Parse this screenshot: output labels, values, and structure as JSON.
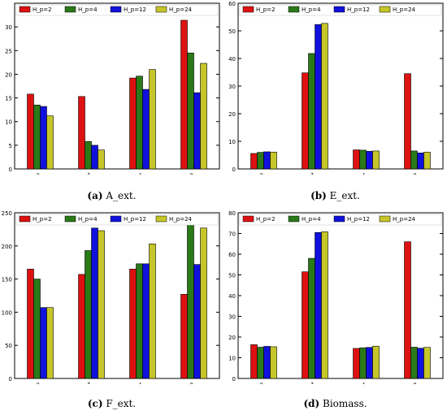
{
  "colors": {
    "Hp=2": "#dd1111",
    "Hp=4": "#2a7a18",
    "Hp=12": "#1111dd",
    "Hp=24": "#c6c62a",
    "axis": "#000000",
    "grid": "#f0f0f0"
  },
  "legend_entries": [
    "H_p=2",
    "H_p=4",
    "H_p=12",
    "H_p=24"
  ],
  "chart_data": [
    {
      "type": "bar",
      "caption_label": "(a)",
      "caption_text": "A_ext.",
      "categories": [
        "True",
        "Constant",
        "Linear",
        "Haag"
      ],
      "series": [
        {
          "name": "H_p=2",
          "values": [
            15.8,
            15.3,
            19.2,
            31.4
          ]
        },
        {
          "name": "H_p=4",
          "values": [
            13.5,
            5.8,
            19.6,
            24.5
          ]
        },
        {
          "name": "H_p=12",
          "values": [
            13.2,
            5.0,
            16.8,
            16.1
          ]
        },
        {
          "name": "H_p=24",
          "values": [
            11.2,
            4.0,
            21.0,
            22.3
          ]
        }
      ],
      "ylim": [
        0,
        35
      ],
      "yticks": [
        0,
        5,
        10,
        15,
        20,
        25,
        30
      ],
      "legend": "top"
    },
    {
      "type": "bar",
      "caption_label": "(b)",
      "caption_text": "E_ext.",
      "categories": [
        "True",
        "Constant",
        "Linear",
        "Haag"
      ],
      "series": [
        {
          "name": "H_p=2",
          "values": [
            5.6,
            34.8,
            6.9,
            34.5
          ]
        },
        {
          "name": "H_p=4",
          "values": [
            6.0,
            41.8,
            6.8,
            6.5
          ]
        },
        {
          "name": "H_p=12",
          "values": [
            6.2,
            52.3,
            6.4,
            5.8
          ]
        },
        {
          "name": "H_p=24",
          "values": [
            6.1,
            52.7,
            6.5,
            6.1
          ]
        }
      ],
      "ylim": [
        0,
        60
      ],
      "yticks": [
        0,
        10,
        20,
        30,
        40,
        50,
        60
      ],
      "legend": "top"
    },
    {
      "type": "bar",
      "caption_label": "(c)",
      "caption_text": "F_ext.",
      "categories": [
        "True",
        "Constant",
        "Linear",
        "Haag"
      ],
      "series": [
        {
          "name": "H_p=2",
          "values": [
            165,
            157,
            165,
            127
          ]
        },
        {
          "name": "H_p=4",
          "values": [
            150,
            193,
            173,
            236
          ]
        },
        {
          "name": "H_p=12",
          "values": [
            107,
            227,
            173,
            172
          ]
        },
        {
          "name": "H_p=24",
          "values": [
            107,
            223,
            203,
            227
          ]
        }
      ],
      "ylim": [
        0,
        250
      ],
      "yticks": [
        0,
        50,
        100,
        150,
        200,
        250
      ],
      "legend": "top"
    },
    {
      "type": "bar",
      "caption_label": "(d)",
      "caption_text": "Biomass.",
      "categories": [
        "True",
        "Constant",
        "Linear",
        "Haag"
      ],
      "series": [
        {
          "name": "H_p=2",
          "values": [
            16.3,
            51.5,
            14.5,
            66.0
          ]
        },
        {
          "name": "H_p=4",
          "values": [
            15.1,
            58.0,
            14.8,
            15.1
          ]
        },
        {
          "name": "H_p=12",
          "values": [
            15.5,
            70.5,
            15.0,
            14.6
          ]
        },
        {
          "name": "H_p=24",
          "values": [
            15.3,
            70.8,
            15.6,
            15.0
          ]
        }
      ],
      "ylim": [
        0,
        80
      ],
      "yticks": [
        0,
        10,
        20,
        30,
        40,
        50,
        60,
        70,
        80
      ],
      "legend": "top"
    }
  ]
}
